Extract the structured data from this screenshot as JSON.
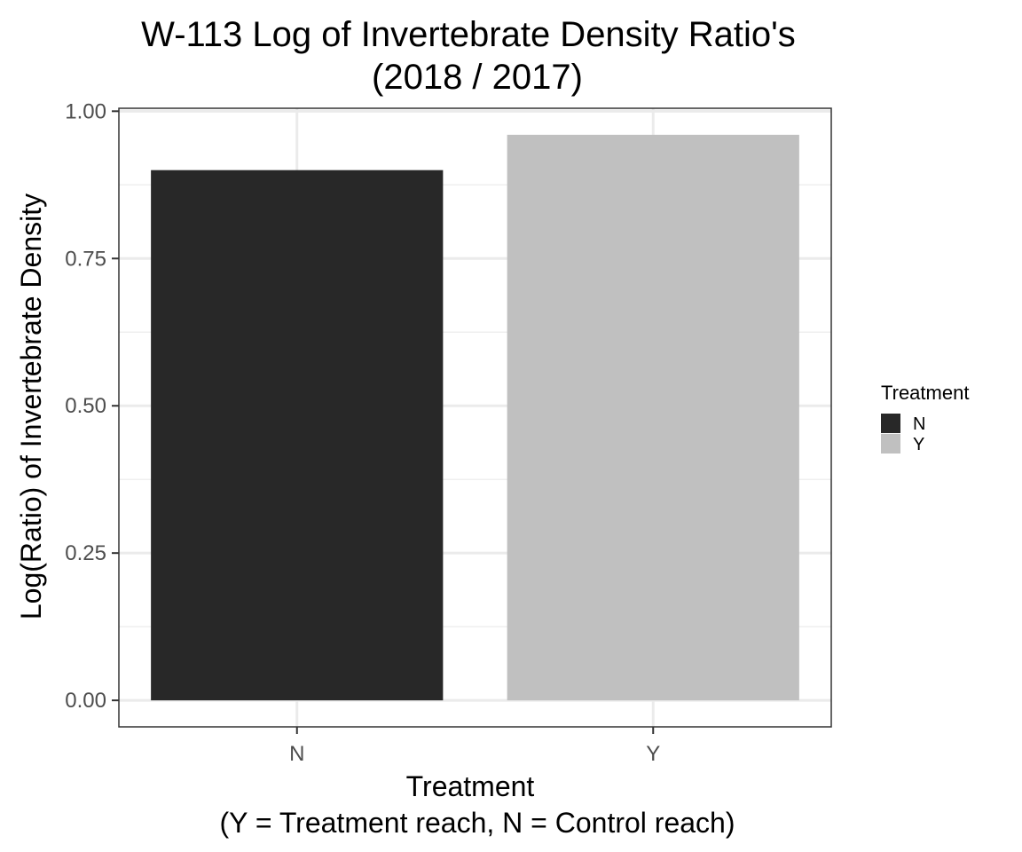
{
  "chart_data": {
    "type": "bar",
    "title": "W-113 Log of Invertebrate Density Ratio's",
    "subtitle": "(2018 / 2017)",
    "xlabel": "Treatment",
    "xlabel_sub": "(Y = Treatment reach, N = Control reach)",
    "ylabel": "Log(Ratio) of Invertebrate Density",
    "categories": [
      "N",
      "Y"
    ],
    "values": [
      0.9,
      0.96
    ],
    "colors": [
      "#282828",
      "#c0c0c0"
    ],
    "ylim": [
      -0.045,
      1.005
    ],
    "y_ticks": [
      0.0,
      0.25,
      0.5,
      0.75,
      1.0
    ],
    "y_tick_labels": [
      "0.00",
      "0.25",
      "0.50",
      "0.75",
      "1.00"
    ],
    "grid": true,
    "theme": "bw",
    "legend": {
      "title": "Treatment",
      "placement": "right",
      "entries": [
        {
          "label": "N",
          "color": "#282828"
        },
        {
          "label": "Y",
          "color": "#c0c0c0"
        }
      ]
    }
  }
}
